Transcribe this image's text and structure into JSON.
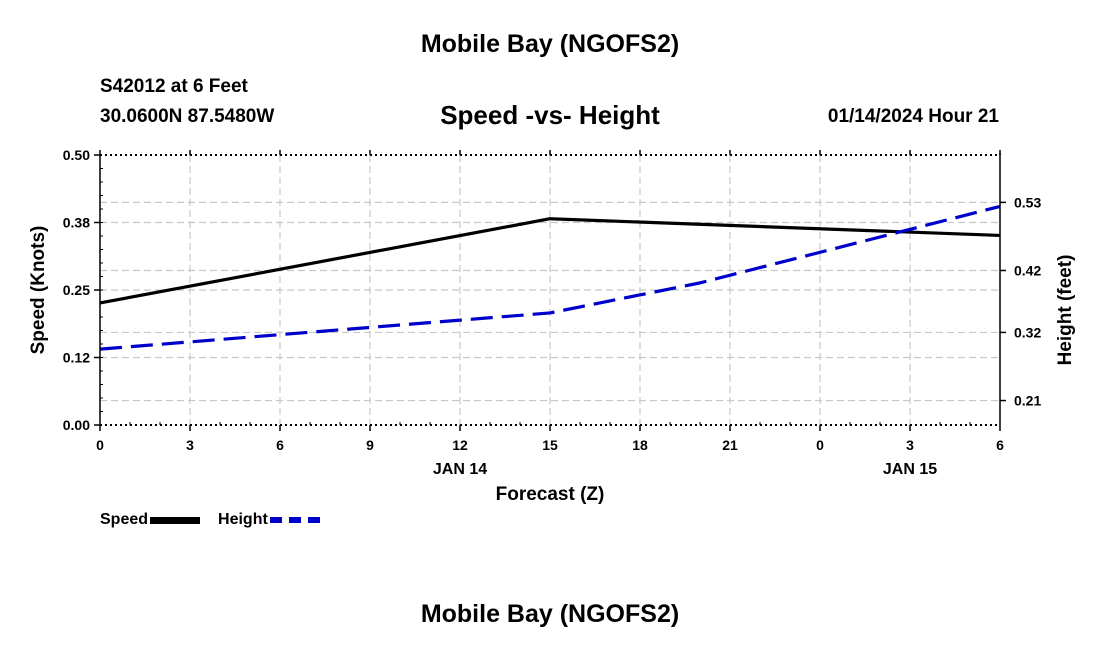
{
  "header": {
    "title": "Mobile Bay (NGOFS2)",
    "station": "S42012 at 6 Feet",
    "coords": "30.0600N  87.5480W",
    "subtitle": "Speed -vs- Height",
    "datetime": "01/14/2024 Hour 21"
  },
  "footer": {
    "title": "Mobile Bay (NGOFS2)"
  },
  "legend": {
    "speed_label": "Speed",
    "height_label": "Height"
  },
  "colors": {
    "speed": "#000000",
    "height": "#0000cc",
    "grid": "#c8c8c8"
  },
  "chart_data": {
    "type": "line",
    "title": "Speed -vs- Height",
    "xlabel": "Forecast (Z)",
    "ylabel": "Speed (Knots)",
    "y2label": "Height (feet)",
    "x": [
      0,
      3,
      6,
      9,
      12,
      15,
      18,
      21,
      24,
      27,
      30
    ],
    "x_tick_labels": [
      "0",
      "3",
      "6",
      "9",
      "12",
      "15",
      "18",
      "21",
      "0",
      "3",
      "6"
    ],
    "date_labels": [
      {
        "x": 12,
        "label": "JAN 14"
      },
      {
        "x": 27,
        "label": "JAN 15"
      }
    ],
    "xlim": [
      0,
      30
    ],
    "ylim": [
      0,
      0.5
    ],
    "y_ticks": [
      0.0,
      0.125,
      0.25,
      0.375,
      0.5
    ],
    "y_tick_labels": [
      "0.00",
      "0.12",
      "0.25",
      "0.38",
      "0.50"
    ],
    "y2lim": [
      0.1705,
      0.6065
    ],
    "y2_ticks": [
      0.21,
      0.32,
      0.42,
      0.53
    ],
    "y2_tick_labels": [
      "0.21",
      "0.32",
      "0.42",
      "0.53"
    ],
    "grid": true,
    "series": [
      {
        "name": "Speed",
        "axis": "left",
        "style": "solid",
        "x": [
          0,
          15,
          30
        ],
        "values": [
          0.226,
          0.382,
          0.351
        ]
      },
      {
        "name": "Height",
        "axis": "right",
        "style": "dashed",
        "x": [
          0,
          15,
          20,
          30
        ],
        "values": [
          0.293,
          0.3515,
          0.4,
          0.5235
        ]
      }
    ]
  }
}
